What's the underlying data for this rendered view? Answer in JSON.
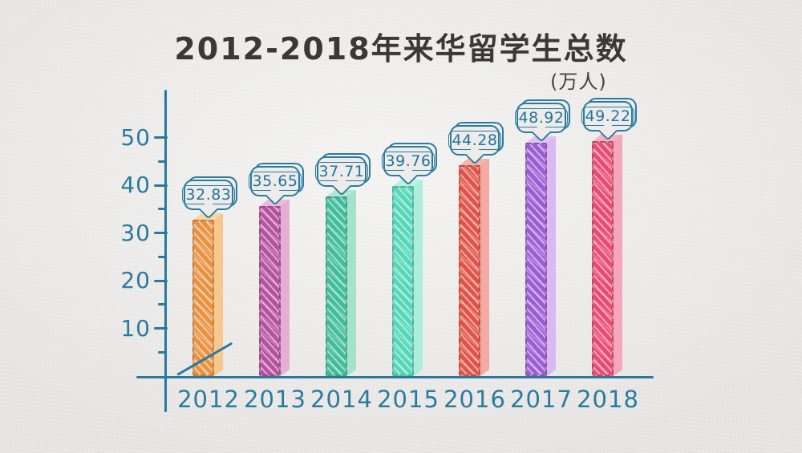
{
  "header": {
    "title": "2012-2018年来华留学生总数",
    "unit": "(万人)"
  },
  "chart_data": {
    "type": "bar",
    "title": "2012-2018年来华留学生总数",
    "unit_label": "(万人)",
    "categories": [
      "2012",
      "2013",
      "2014",
      "2015",
      "2016",
      "2017",
      "2018"
    ],
    "values": [
      32.83,
      35.65,
      37.71,
      39.76,
      44.28,
      48.92,
      49.22
    ],
    "value_labels": [
      "32.83",
      "35.65",
      "37.71",
      "39.76",
      "44.28",
      "48.92",
      "49.22"
    ],
    "xlabel": "",
    "ylabel": "(万人)",
    "ylim": [
      0,
      55
    ],
    "yticks": [
      10,
      20,
      30,
      40,
      50
    ],
    "yticks_minor": [
      5,
      15,
      25,
      35,
      45
    ],
    "grid": false,
    "legend": "none",
    "style": "hand-drawn sketch, 3D bars with value speech-bubble callouts",
    "axis_color": "#28799e",
    "tick_text_color": "#2a7b9e",
    "title_color": "#3a3938",
    "background_color": "#e9e8e6",
    "bar_styles": [
      {
        "front": "#e8913f",
        "side": "#f6c88f",
        "top": "#f7d6a8"
      },
      {
        "front": "#b5519f",
        "side": "#e5aed6",
        "top": "#e9bcdd"
      },
      {
        "front": "#3fbd9c",
        "side": "#a3e3cc",
        "top": "#afe9d5"
      },
      {
        "front": "#53d7b7",
        "side": "#aeeddc",
        "top": "#bdf2e3"
      },
      {
        "front": "#e05348",
        "side": "#f3aaa3",
        "top": "#f4b5ae"
      },
      {
        "front": "#9c5cd4",
        "side": "#d8baf0",
        "top": "#ddc4f3"
      },
      {
        "front": "#e84b71",
        "side": "#f5a6bb",
        "top": "#f6b1c4"
      }
    ]
  }
}
